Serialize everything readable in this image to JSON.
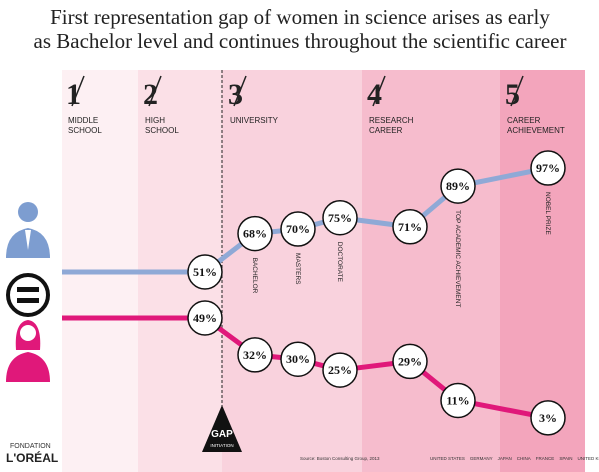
{
  "chart_data": {
    "type": "line",
    "title_lines": [
      "First representation gap of women in science arises as early",
      "as Bachelor level and continues throughout the scientific career"
    ],
    "stages": [
      {
        "number": "1",
        "label": [
          "MIDDLE",
          "SCHOOL"
        ]
      },
      {
        "number": "2",
        "label": [
          "HIGH",
          "SCHOOL"
        ]
      },
      {
        "number": "3",
        "label": [
          "UNIVERSITY"
        ]
      },
      {
        "number": "4",
        "label": [
          "RESEARCH",
          "CAREER"
        ]
      },
      {
        "number": "5",
        "label": [
          "CAREER",
          "ACHIEVEMENT"
        ]
      }
    ],
    "categories": [
      null,
      "BACHELOR",
      "MASTERS",
      "DOCTORATE",
      null,
      "TOP ACADEMIC ACHIEVEMENT",
      "NOBEL PRIZE"
    ],
    "series": [
      {
        "color": "#8fa9d6",
        "values": [
          51,
          68,
          70,
          75,
          71,
          89,
          97
        ],
        "value_labels": [
          "51%",
          "68%",
          "70%",
          "75%",
          "71%",
          "89%",
          "97%"
        ]
      },
      {
        "color": "#e0187a",
        "values": [
          49,
          32,
          30,
          25,
          29,
          11,
          3
        ],
        "value_labels": [
          "49%",
          "32%",
          "30%",
          "25%",
          "29%",
          "11%",
          "3%"
        ]
      }
    ],
    "gap": [
      "GAP",
      "INITIATION"
    ],
    "source": "Source: Boston Consulting Group, 2013",
    "countries": [
      "UNITED STATES",
      "GERMANY",
      "JAPAN",
      "CHINA",
      "FRANCE",
      "SPAIN",
      "UNITED KINGDOM"
    ],
    "logo": [
      "FONDATION",
      "L'ORÉAL"
    ]
  }
}
